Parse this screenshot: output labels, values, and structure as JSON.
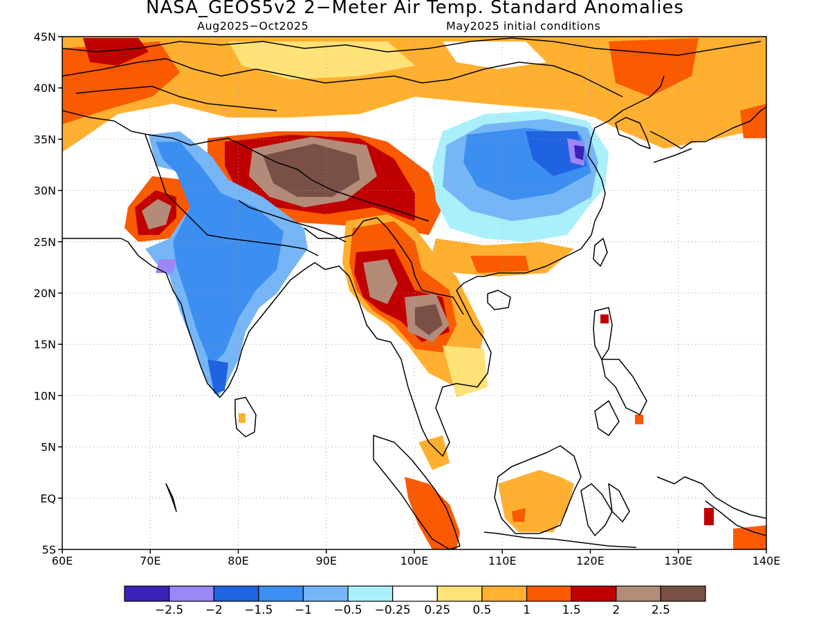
{
  "title": "NASA_GEOS5v2 2−Meter Air Temp. Standard Anomalies",
  "subtitle_left": "Aug2025−Oct2025",
  "subtitle_right": "May2025 initial conditions",
  "map": {
    "lon_range": [
      60,
      140
    ],
    "lat_range": [
      -5,
      45
    ],
    "lon_ticks": [
      {
        "value": 60,
        "label": "60E"
      },
      {
        "value": 70,
        "label": "70E"
      },
      {
        "value": 80,
        "label": "80E"
      },
      {
        "value": 90,
        "label": "90E"
      },
      {
        "value": 100,
        "label": "100E"
      },
      {
        "value": 110,
        "label": "110E"
      },
      {
        "value": 120,
        "label": "120E"
      },
      {
        "value": 130,
        "label": "130E"
      },
      {
        "value": 140,
        "label": "140E"
      }
    ],
    "lat_ticks": [
      {
        "value": 45,
        "label": "45N"
      },
      {
        "value": 40,
        "label": "40N"
      },
      {
        "value": 35,
        "label": "35N"
      },
      {
        "value": 30,
        "label": "30N"
      },
      {
        "value": 25,
        "label": "25N"
      },
      {
        "value": 20,
        "label": "20N"
      },
      {
        "value": 15,
        "label": "15N"
      },
      {
        "value": 10,
        "label": "10N"
      },
      {
        "value": 5,
        "label": "5N"
      },
      {
        "value": 0,
        "label": "EQ"
      },
      {
        "value": -5,
        "label": "5S"
      }
    ],
    "grid": "dotted",
    "anomaly_regions": [
      {
        "region": "Northern band",
        "lons": [
          60,
          140
        ],
        "lats": [
          36,
          45
        ],
        "color": "#ffb030"
      },
      {
        "region": "Central Asia",
        "lons": [
          60,
          72
        ],
        "lats": [
          36,
          43
        ],
        "color": "#fa5a00"
      },
      {
        "region": "Mongolia",
        "lons": [
          80,
          100
        ],
        "lats": [
          40,
          45
        ],
        "color": "#ffe278"
      },
      {
        "region": "Tibetan Plateau",
        "lons": [
          80,
          98
        ],
        "lats": [
          27,
          36
        ],
        "color": "#c00000"
      },
      {
        "region": "Tibetan Plateau core",
        "lons": [
          84,
          95
        ],
        "lats": [
          28,
          34.5
        ],
        "color": "#7a5046"
      },
      {
        "region": "Pakistan",
        "lons": [
          68,
          73
        ],
        "lats": [
          24,
          30
        ],
        "color": "#c00000"
      },
      {
        "region": "India",
        "lons": [
          73,
          87
        ],
        "lats": [
          10,
          34
        ],
        "color": "#3c96f0"
      },
      {
        "region": "Eastern China",
        "lons": [
          102,
          120
        ],
        "lats": [
          25,
          37
        ],
        "color": "#3c96f0"
      },
      {
        "region": "South China coast",
        "lons": [
          106,
          117
        ],
        "lats": [
          21,
          25
        ],
        "color": "#fa5a00"
      },
      {
        "region": "Myanmar",
        "lons": [
          93,
          99
        ],
        "lats": [
          17,
          24
        ],
        "color": "#b48a78"
      },
      {
        "region": "Thailand and Laos",
        "lons": [
          98,
          106
        ],
        "lats": [
          13,
          20
        ],
        "color": "#7a5046"
      },
      {
        "region": "Borneo",
        "lons": [
          110,
          117
        ],
        "lats": [
          -3,
          3
        ],
        "color": "#ffb030"
      },
      {
        "region": "Sumatra",
        "lons": [
          99,
          106
        ],
        "lats": [
          -5,
          2
        ],
        "color": "#fa5a00"
      },
      {
        "region": "New Guinea",
        "lons": [
          133,
          140
        ],
        "lats": [
          -5,
          -1
        ],
        "color": "#fa5a00"
      }
    ]
  },
  "colorbar": {
    "colors": [
      "#3a22b8",
      "#9b87f5",
      "#1f63e0",
      "#3c8ff0",
      "#76b6f7",
      "#aaf0fa",
      "#ffffff",
      "#ffe278",
      "#ffb030",
      "#fa5a00",
      "#c00000",
      "#b48a78",
      "#7a5046"
    ],
    "labels": [
      "−2.5",
      "−2",
      "−1.5",
      "−1",
      "−0.5",
      "−0.25",
      "0.25",
      "0.5",
      "1",
      "1.5",
      "2",
      "2.5"
    ]
  }
}
